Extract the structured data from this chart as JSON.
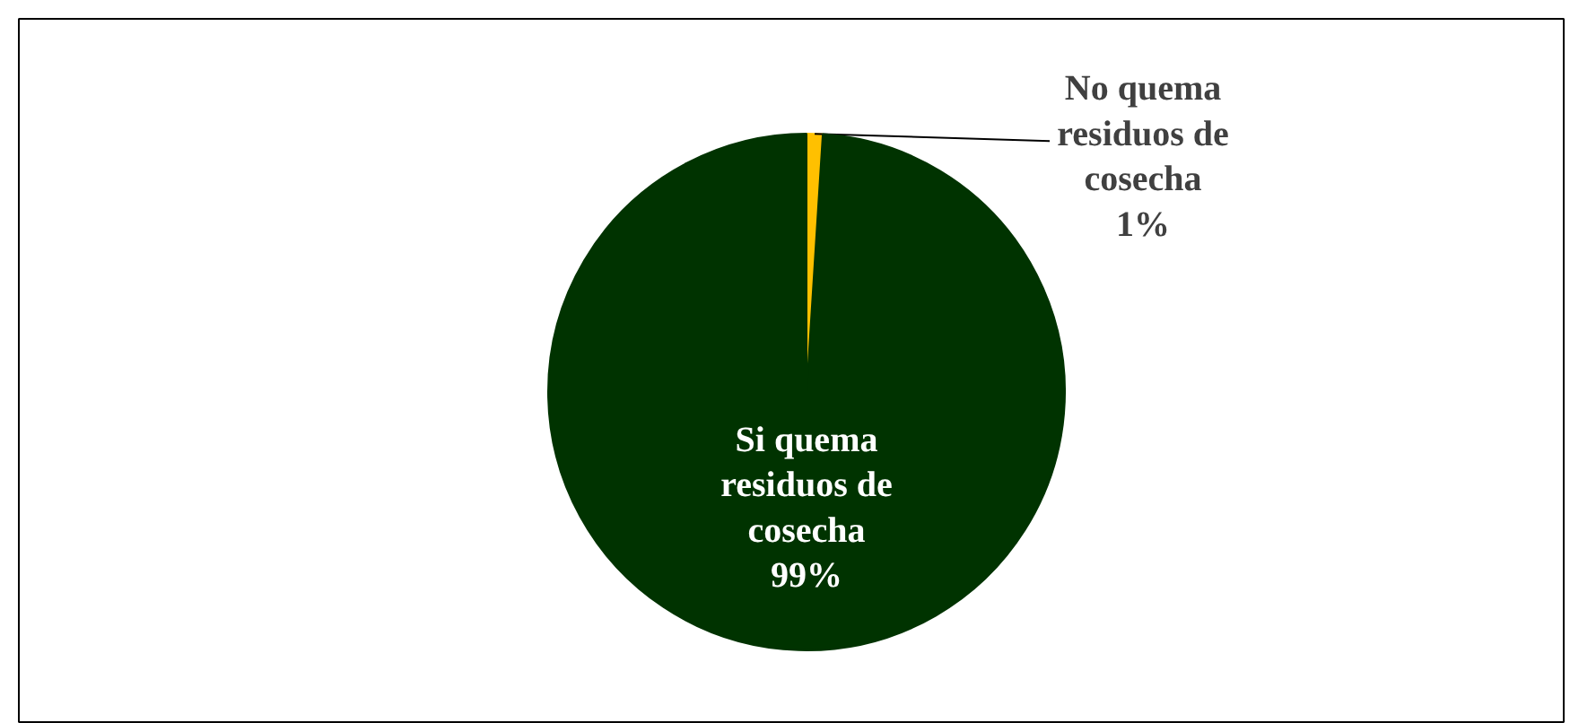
{
  "chart_data": {
    "type": "pie",
    "categories": [
      "No quema residuos de cosecha",
      "Si quema residuos de cosecha"
    ],
    "values": [
      1,
      99
    ],
    "value_labels": [
      "1%",
      "99%"
    ],
    "colors": [
      "#ffc000",
      "#003300"
    ]
  }
}
